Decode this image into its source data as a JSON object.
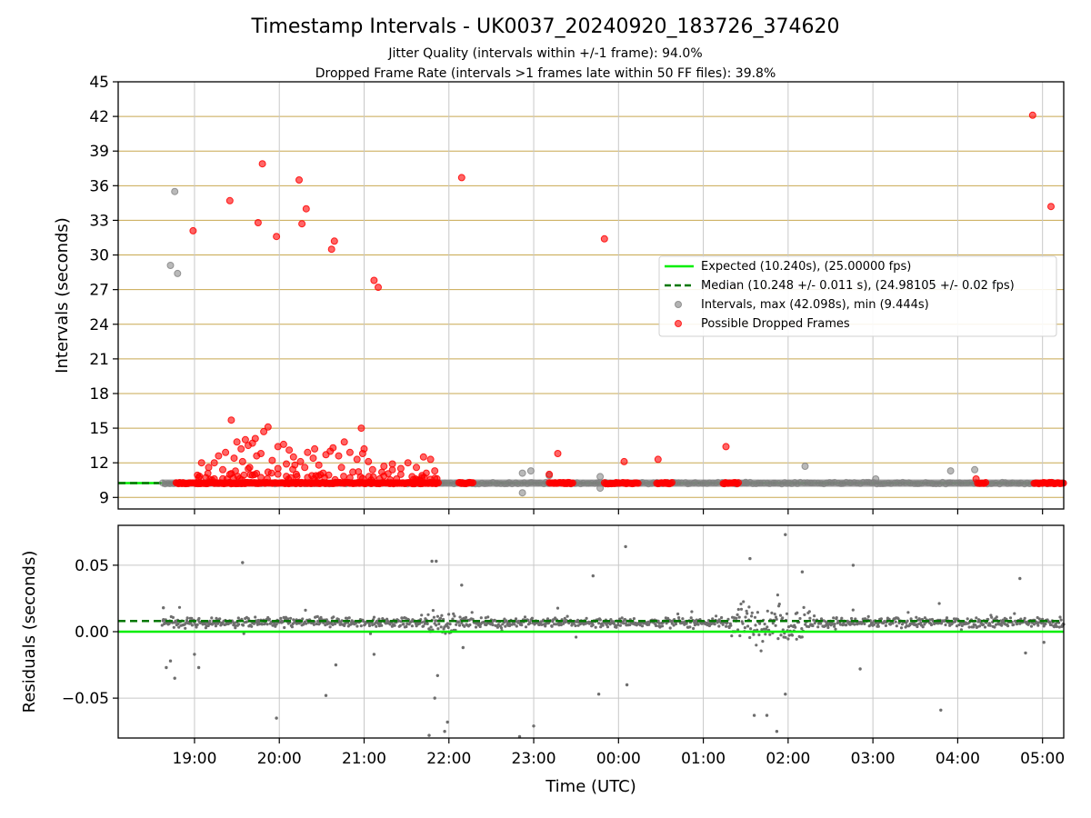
{
  "chart_data": [
    {
      "type": "scatter",
      "title": "Timestamp Intervals - UK0037_20240920_183726_374620",
      "subtitle_lines": [
        "Jitter Quality (intervals within +/-1 frame): 94.0%",
        "Dropped Frame Rate (intervals >1 frames late within 50 FF files): 39.8%"
      ],
      "ylabel": "Intervals (seconds)",
      "xlim": [
        "2024-09-20 18:06",
        "2024-09-21 05:15"
      ],
      "ylim": [
        8,
        45
      ],
      "yticks": [
        9,
        12,
        15,
        18,
        21,
        24,
        27,
        30,
        33,
        36,
        39,
        42,
        45
      ],
      "xticks": [
        "2024-09-20 19:00",
        "2024-09-20 20:00",
        "2024-09-20 21:00",
        "2024-09-20 22:00",
        "2024-09-20 23:00",
        "2024-09-21 00:00",
        "2024-09-21 01:00",
        "2024-09-21 02:00",
        "2024-09-21 03:00",
        "2024-09-21 04:00",
        "2024-09-21 05:00"
      ],
      "xtick_labels": [
        "19:00",
        "20:00",
        "21:00",
        "22:00",
        "23:00",
        "00:00",
        "01:00",
        "02:00",
        "03:00",
        "04:00",
        "05:00"
      ],
      "grid": true,
      "legend_position": "center-right",
      "legend": [
        "Expected (10.240s), (25.00000 fps)",
        "Median (10.248 +/- 0.011 s), (24.98105 +/- 0.02 fps)",
        "Intervals, max (42.098s), min (9.444s)",
        "Possible Dropped Frames"
      ],
      "colors": {
        "expected": "#00ee00",
        "median": "#007700",
        "intervals": "#808080",
        "dropped": "#ff0000",
        "hgrid": "#c8a850",
        "vgrid": "#c8c8c8"
      },
      "expected": 10.24,
      "median": 10.248,
      "baseline_range": [
        "2024-09-20 18:37",
        "2024-09-21 05:15"
      ],
      "dropped_baseline_bands": [
        [
          "2024-09-20 18:47",
          "2024-09-20 18:59"
        ],
        [
          "2024-09-20 19:00",
          "2024-09-20 21:53"
        ],
        [
          "2024-09-20 22:07",
          "2024-09-20 22:17"
        ],
        [
          "2024-09-20 23:11",
          "2024-09-20 23:28"
        ],
        [
          "2024-09-20 23:50",
          "2024-09-21 00:01"
        ],
        [
          "2024-09-21 00:03",
          "2024-09-21 00:14"
        ],
        [
          "2024-09-21 00:27",
          "2024-09-21 00:38"
        ],
        [
          "2024-09-21 01:14",
          "2024-09-21 01:25"
        ],
        [
          "2024-09-21 04:14",
          "2024-09-21 04:20"
        ],
        [
          "2024-09-21 04:54",
          "2024-09-21 05:15"
        ]
      ],
      "intervals_points": [
        [
          "2024-09-20 18:43",
          29.1
        ],
        [
          "2024-09-20 18:46",
          35.5
        ],
        [
          "2024-09-20 18:48",
          28.4
        ],
        [
          "2024-09-20 22:52",
          11.1
        ],
        [
          "2024-09-20 22:52",
          9.4
        ],
        [
          "2024-09-20 22:58",
          11.3
        ],
        [
          "2024-09-20 23:11",
          10.9
        ],
        [
          "2024-09-20 23:47",
          10.8
        ],
        [
          "2024-09-20 23:47",
          9.8
        ],
        [
          "2024-09-21 01:30",
          10.3
        ],
        [
          "2024-09-21 02:12",
          11.7
        ],
        [
          "2024-09-21 03:02",
          10.6
        ],
        [
          "2024-09-21 03:55",
          11.3
        ],
        [
          "2024-09-21 04:12",
          11.4
        ]
      ],
      "dropped_points": [
        [
          "2024-09-20 18:59",
          32.1
        ],
        [
          "2024-09-20 19:25",
          34.7
        ],
        [
          "2024-09-20 19:45",
          32.8
        ],
        [
          "2024-09-20 19:48",
          37.9
        ],
        [
          "2024-09-20 19:58",
          31.6
        ],
        [
          "2024-09-20 20:14",
          36.5
        ],
        [
          "2024-09-20 20:16",
          32.7
        ],
        [
          "2024-09-20 20:19",
          34.0
        ],
        [
          "2024-09-20 20:37",
          30.5
        ],
        [
          "2024-09-20 20:39",
          31.2
        ],
        [
          "2024-09-20 21:07",
          27.8
        ],
        [
          "2024-09-20 21:10",
          27.2
        ],
        [
          "2024-09-20 22:09",
          36.7
        ],
        [
          "2024-09-20 23:50",
          31.4
        ],
        [
          "2024-09-21 04:53",
          42.1
        ],
        [
          "2024-09-21 05:06",
          34.2
        ],
        [
          "2024-09-20 19:26",
          15.7
        ],
        [
          "2024-09-20 20:58",
          15.0
        ],
        [
          "2024-09-20 19:52",
          15.1
        ],
        [
          "2024-09-20 19:49",
          14.7
        ],
        [
          "2024-09-20 19:43",
          14.1
        ],
        [
          "2024-09-20 19:36",
          14.0
        ],
        [
          "2024-09-20 19:30",
          13.8
        ],
        [
          "2024-09-20 19:38",
          13.5
        ],
        [
          "2024-09-20 19:33",
          13.2
        ],
        [
          "2024-09-20 19:41",
          13.7
        ],
        [
          "2024-09-20 19:22",
          12.9
        ],
        [
          "2024-09-20 19:17",
          12.6
        ],
        [
          "2024-09-20 19:14",
          12.0
        ],
        [
          "2024-09-20 19:10",
          11.6
        ],
        [
          "2024-09-20 19:05",
          12.0
        ],
        [
          "2024-09-20 19:20",
          11.4
        ],
        [
          "2024-09-20 19:28",
          12.4
        ],
        [
          "2024-09-20 19:47",
          12.8
        ],
        [
          "2024-09-20 19:55",
          12.2
        ],
        [
          "2024-09-20 19:59",
          13.4
        ],
        [
          "2024-09-20 20:03",
          13.6
        ],
        [
          "2024-09-20 20:07",
          13.1
        ],
        [
          "2024-09-20 20:10",
          12.5
        ],
        [
          "2024-09-20 20:05",
          11.9
        ],
        [
          "2024-09-20 19:52",
          11.2
        ],
        [
          "2024-09-20 20:15",
          12.1
        ],
        [
          "2024-09-20 20:20",
          12.9
        ],
        [
          "2024-09-20 20:24",
          12.4
        ],
        [
          "2024-09-20 20:28",
          11.8
        ],
        [
          "2024-09-20 20:33",
          12.7
        ],
        [
          "2024-09-20 20:38",
          13.3
        ],
        [
          "2024-09-20 20:42",
          12.6
        ],
        [
          "2024-09-20 20:46",
          13.8
        ],
        [
          "2024-09-20 20:50",
          12.9
        ],
        [
          "2024-09-20 20:55",
          12.3
        ],
        [
          "2024-09-20 20:59",
          12.8
        ],
        [
          "2024-09-20 21:03",
          12.1
        ],
        [
          "2024-09-20 21:06",
          11.4
        ],
        [
          "2024-09-20 21:14",
          11.7
        ],
        [
          "2024-09-20 21:20",
          11.9
        ],
        [
          "2024-09-20 21:26",
          11.5
        ],
        [
          "2024-09-20 21:31",
          12.0
        ],
        [
          "2024-09-20 21:37",
          11.6
        ],
        [
          "2024-09-20 21:42",
          12.5
        ],
        [
          "2024-09-20 21:47",
          12.3
        ],
        [
          "2024-09-20 21:50",
          11.3
        ],
        [
          "2024-09-20 21:34",
          10.8
        ],
        [
          "2024-09-20 21:41",
          10.9
        ],
        [
          "2024-09-20 20:52",
          11.2
        ],
        [
          "2024-09-20 20:31",
          11.1
        ],
        [
          "2024-09-20 20:12",
          11.0
        ],
        [
          "2024-09-20 19:39",
          11.6
        ],
        [
          "2024-09-20 19:25",
          11.0
        ],
        [
          "2024-09-20 19:03",
          10.7
        ],
        [
          "2024-09-20 19:59",
          11.5
        ],
        [
          "2024-09-20 20:36",
          13.0
        ],
        [
          "2024-09-20 20:44",
          11.6
        ],
        [
          "2024-09-20 19:34",
          12.1
        ],
        [
          "2024-09-20 20:25",
          13.2
        ],
        [
          "2024-09-20 21:00",
          13.2
        ],
        [
          "2024-09-20 20:18",
          11.6
        ],
        [
          "2024-09-20 19:44",
          12.6
        ],
        [
          "2024-09-20 23:11",
          11.0
        ],
        [
          "2024-09-20 23:17",
          12.8
        ],
        [
          "2024-09-21 00:04",
          12.1
        ],
        [
          "2024-09-21 00:28",
          12.3
        ],
        [
          "2024-09-21 01:16",
          13.4
        ],
        [
          "2024-09-21 04:13",
          10.6
        ]
      ]
    },
    {
      "type": "scatter",
      "ylabel": "Residuals (seconds)",
      "xlabel": "Time (UTC)",
      "ylim": [
        -0.08,
        0.08
      ],
      "yticks": [
        -0.05,
        0.0,
        0.05
      ],
      "ytick_labels": [
        "−0.05",
        "0.00",
        "0.05"
      ],
      "expected_residual": 0.0,
      "median_residual": 0.008,
      "residual_points_start": "2024-09-20 18:37",
      "residual_points_end": "2024-09-21 05:15",
      "residual_center": 0.007,
      "outliers": [
        [
          "2024-09-20 18:38",
          0.018
        ],
        [
          "2024-09-20 18:40",
          -0.027
        ],
        [
          "2024-09-20 18:43",
          -0.022
        ],
        [
          "2024-09-20 18:46",
          -0.035
        ],
        [
          "2024-09-20 19:00",
          -0.017
        ],
        [
          "2024-09-20 19:03",
          -0.027
        ],
        [
          "2024-09-20 19:34",
          0.052
        ],
        [
          "2024-09-20 19:58",
          -0.065
        ],
        [
          "2024-09-20 20:33",
          -0.048
        ],
        [
          "2024-09-20 20:40",
          -0.025
        ],
        [
          "2024-09-20 21:07",
          -0.017
        ],
        [
          "2024-09-20 21:48",
          0.053
        ],
        [
          "2024-09-20 21:51",
          0.053
        ],
        [
          "2024-09-20 21:50",
          -0.05
        ],
        [
          "2024-09-20 21:46",
          -0.078
        ],
        [
          "2024-09-20 21:52",
          -0.033
        ],
        [
          "2024-09-20 21:57",
          -0.075
        ],
        [
          "2024-09-20 21:59",
          -0.068
        ],
        [
          "2024-09-20 22:09",
          0.035
        ],
        [
          "2024-09-20 22:10",
          -0.012
        ],
        [
          "2024-09-20 22:50",
          -0.079
        ],
        [
          "2024-09-20 23:00",
          -0.071
        ],
        [
          "2024-09-20 23:46",
          -0.047
        ],
        [
          "2024-09-20 23:42",
          0.042
        ],
        [
          "2024-09-21 00:05",
          0.064
        ],
        [
          "2024-09-21 00:06",
          -0.04
        ],
        [
          "2024-09-21 01:33",
          0.055
        ],
        [
          "2024-09-21 01:36",
          -0.063
        ],
        [
          "2024-09-21 01:45",
          -0.063
        ],
        [
          "2024-09-21 01:52",
          -0.075
        ],
        [
          "2024-09-21 01:58",
          0.073
        ],
        [
          "2024-09-21 01:58",
          -0.047
        ],
        [
          "2024-09-21 02:10",
          0.045
        ],
        [
          "2024-09-21 02:46",
          0.05
        ],
        [
          "2024-09-21 02:51",
          -0.028
        ],
        [
          "2024-09-21 03:48",
          -0.059
        ],
        [
          "2024-09-21 04:44",
          0.04
        ],
        [
          "2024-09-21 04:48",
          -0.016
        ],
        [
          "2024-09-21 05:01",
          -0.008
        ]
      ]
    }
  ]
}
